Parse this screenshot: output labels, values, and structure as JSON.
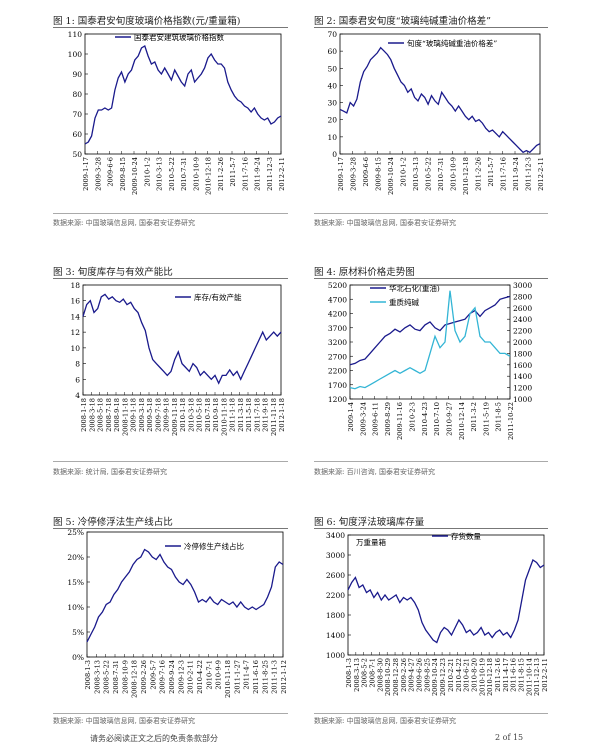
{
  "figures": [
    {
      "caption": "图 1:  国泰君安旬度玻璃价格指数(元/重量箱)",
      "source": "数据来源:  中国玻璃信息网, 国泰君安证券研究",
      "chart_data": {
        "type": "line",
        "legend": [
          "国泰君安建筑玻璃价格指数"
        ],
        "ylim": [
          50,
          110
        ],
        "yticks": [
          "50",
          "60",
          "70",
          "80",
          "90",
          "100",
          "110"
        ],
        "xticks": [
          "2009-1-17",
          "2009-3-28",
          "2009-6-6",
          "2009-8-15",
          "2009-10-24",
          "2010-1-2",
          "2010-3-13",
          "2010-5-22",
          "2010-7-31",
          "2010-10-9",
          "2010-12-18",
          "2011-2-26",
          "2011-5-7",
          "2011-7-16",
          "2011-9-24",
          "2011-12-3",
          "2012-2-11"
        ],
        "series": [
          {
            "values": [
              55,
              56,
              59,
              68,
              72,
              72,
              73,
              72,
              73,
              82,
              88,
              91,
              86,
              90,
              92,
              97,
              99,
              103,
              104,
              99,
              95,
              96,
              92,
              90,
              93,
              90,
              87,
              92,
              89,
              86,
              84,
              90,
              92,
              86,
              88,
              90,
              93,
              98,
              100,
              97,
              95,
              95,
              93,
              86,
              82,
              79,
              77,
              76,
              74,
              73,
              71,
              73,
              70,
              68,
              67,
              68,
              65,
              66,
              68,
              69
            ]
          }
        ]
      }
    },
    {
      "caption": "图 2:  国泰君安旬度“玻璃纯碱重油价格差”",
      "source": "数据来源:  中国玻璃信息网, 国泰君安证券研究",
      "chart_data": {
        "type": "line",
        "legend": [
          "旬度“玻璃纯碱重油价格差”"
        ],
        "ylim": [
          0,
          70
        ],
        "yticks": [
          "0",
          "10",
          "20",
          "30",
          "40",
          "50",
          "60",
          "70"
        ],
        "xticks": [
          "2009-1-17",
          "2009-3-28",
          "2009-6-6",
          "2009-8-15",
          "2009-10-24",
          "2010-1-2",
          "2010-3-13",
          "2010-5-22",
          "2010-7-31",
          "2010-10-9",
          "2010-12-18",
          "2011-2-26",
          "2011-5-7",
          "2011-7-16",
          "2011-9-24",
          "2011-12-3",
          "2012-2-11"
        ],
        "series": [
          {
            "values": [
              26,
              25,
              24,
              30,
              28,
              32,
              42,
              48,
              51,
              55,
              57,
              59,
              62,
              60,
              58,
              55,
              50,
              46,
              42,
              40,
              36,
              38,
              33,
              31,
              35,
              33,
              29,
              34,
              31,
              29,
              36,
              33,
              30,
              28,
              25,
              28,
              25,
              22,
              20,
              22,
              19,
              20,
              18,
              15,
              13,
              14,
              12,
              10,
              13,
              11,
              9,
              7,
              5,
              3,
              1,
              2,
              1,
              3,
              5,
              6
            ]
          }
        ]
      }
    },
    {
      "caption": "图 3:  旬度库存与有效产能比",
      "source": "数据来源:  统计局, 国泰君安证券研究",
      "chart_data": {
        "type": "line",
        "legend": [
          "库存/有效产能"
        ],
        "ylim": [
          4,
          18
        ],
        "yticks": [
          "4",
          "6",
          "8",
          "10",
          "12",
          "14",
          "16",
          "18"
        ],
        "xticks": [
          "2008-1-18",
          "2008-3-18",
          "2008-5-18",
          "2008-7-18",
          "2008-9-18",
          "2008-11-18",
          "2009-1-18",
          "2009-3-18",
          "2009-5-18",
          "2009-7-18",
          "2009-9-18",
          "2009-11-18",
          "2010-1-18",
          "2010-3-18",
          "2010-5-18",
          "2010-7-18",
          "2010-9-18",
          "2010-11-18",
          "2011-1-18",
          "2011-3-18",
          "2011-5-18",
          "2011-7-18",
          "2011-9-18",
          "2011-11-18",
          "2012-1-18"
        ],
        "series": [
          {
            "values": [
              14,
              15.5,
              16,
              14.5,
              15,
              16.5,
              16.8,
              16.2,
              16.5,
              16,
              15.8,
              16.2,
              15.5,
              15.8,
              15,
              14.5,
              13.2,
              12.2,
              10,
              8.5,
              8,
              7.5,
              7,
              6.5,
              7,
              8.5,
              9.5,
              8,
              7.5,
              7,
              8,
              7.5,
              6.5,
              7,
              6.5,
              6,
              6.5,
              5.5,
              6.5,
              6.5,
              7.2,
              6.5,
              7,
              6,
              7,
              8,
              9,
              10,
              11,
              12,
              11,
              11.5,
              12,
              11.5,
              12
            ]
          }
        ]
      }
    },
    {
      "caption": "图 4:  原材料价格走势图",
      "source": "数据来源:  百川咨询, 国泰君安证券研究",
      "chart_data": {
        "type": "line",
        "ylim_left": [
          1200,
          5200
        ],
        "yticks_left": [
          "1200",
          "1700",
          "2200",
          "2700",
          "3200",
          "3700",
          "4200",
          "4700",
          "5200"
        ],
        "ylim_right": [
          1000,
          3000
        ],
        "yticks_right": [
          "1000",
          "1200",
          "1400",
          "1600",
          "1800",
          "2000",
          "2200",
          "2400",
          "2600",
          "2800",
          "3000"
        ],
        "xticks": [
          "2009-1-4",
          "2009-3-24",
          "2009-6-11",
          "2009-8-29",
          "2009-11-16",
          "2010-2-3",
          "2010-4-23",
          "2010-7-10",
          "2010-9-27",
          "2010-12-14",
          "2011-3-2",
          "2011-5-19",
          "2011-8-5",
          "2011-10-22"
        ],
        "series": [
          {
            "name": "华北石化(重油)",
            "axis": "left",
            "values": [
              2400,
              2450,
              2550,
              2600,
              2800,
              3000,
              3200,
              3400,
              3500,
              3650,
              3550,
              3700,
              3800,
              3650,
              3600,
              3800,
              3900,
              3700,
              3600,
              3800,
              3850,
              3900,
              3950,
              4000,
              4200,
              4300,
              4100,
              4300,
              4400,
              4500,
              4700,
              4750,
              4800
            ]
          },
          {
            "name": "重质纯碱",
            "axis": "right",
            "values": [
              1200,
              1180,
              1220,
              1200,
              1250,
              1300,
              1350,
              1400,
              1450,
              1500,
              1450,
              1500,
              1550,
              1500,
              1450,
              1500,
              1800,
              2100,
              1900,
              2000,
              2900,
              2200,
              2000,
              2100,
              2500,
              2600,
              2100,
              2000,
              2000,
              1900,
              1800,
              1800,
              1750
            ]
          }
        ]
      }
    },
    {
      "caption": "图 5:  冷停修浮法生产线占比",
      "source": "数据来源:  中国玻璃信息网, 国泰君安证券研究",
      "chart_data": {
        "type": "line",
        "legend": [
          "冷停修生产线占比"
        ],
        "ylim": [
          0,
          25
        ],
        "yticks": [
          "0%",
          "5%",
          "10%",
          "15%",
          "20%",
          "25%"
        ],
        "xticks": [
          "2008-1-3",
          "2008-3-13",
          "2008-5-22",
          "2008-7-31",
          "2008-10-9",
          "2008-12-18",
          "2009-2-26",
          "2009-5-7",
          "2009-7-16",
          "2009-9-24",
          "2009-12-3",
          "2010-2-11",
          "2010-4-22",
          "2010-7-1",
          "2010-9-9",
          "2010-11-18",
          "2011-1-27",
          "2011-4-7",
          "2011-6-16",
          "2011-8-25",
          "2011-11-3",
          "2012-1-12"
        ],
        "series": [
          {
            "values": [
              3,
              4.5,
              6,
              8,
              9,
              10.5,
              11,
              12.5,
              13.5,
              15,
              16,
              17,
              18.5,
              19.5,
              20,
              21.5,
              21,
              20,
              19.5,
              20.5,
              19,
              18,
              17.5,
              16,
              15,
              14.5,
              15.5,
              14.5,
              13,
              11,
              11.5,
              11,
              12,
              11,
              10.5,
              11.5,
              11,
              10.5,
              11,
              10,
              11,
              10,
              9.5,
              10,
              9.5,
              10,
              10.5,
              12,
              14,
              18,
              19,
              18.5
            ]
          }
        ]
      }
    },
    {
      "caption": "图 6:  旬度浮法玻璃库存量",
      "source": "数据来源:  中国玻璃信息网, 国泰君安证券研究",
      "chart_data": {
        "type": "line",
        "ylabel": "万重量箱",
        "legend": [
          "存货数量"
        ],
        "ylim": [
          1000,
          3400
        ],
        "yticks": [
          "1000",
          "1400",
          "1800",
          "2200",
          "2600",
          "3000",
          "3400"
        ],
        "xticks": [
          "2008-1-3",
          "2008-3-13",
          "2008-5-2",
          "2008-7-1",
          "2008-8-30",
          "2008-10-29",
          "2008-12-28",
          "2009-2-26",
          "2009-4-27",
          "2009-6-26",
          "2009-8-25",
          "2009-10-24",
          "2009-12-23",
          "2010-2-21",
          "2010-4-22",
          "2010-6-21",
          "2010-8-20",
          "2010-10-19",
          "2010-12-18",
          "2011-2-16",
          "2011-4-17",
          "2011-6-16",
          "2011-8-15",
          "2011-10-14",
          "2011-12-13",
          "2012-2-11"
        ],
        "series": [
          {
            "values": [
              2300,
              2450,
              2550,
              2350,
              2400,
              2250,
              2300,
              2150,
              2250,
              2100,
              2200,
              2100,
              2150,
              2200,
              2050,
              2150,
              2100,
              2150,
              2050,
              1900,
              1650,
              1500,
              1400,
              1300,
              1250,
              1450,
              1550,
              1500,
              1400,
              1550,
              1700,
              1600,
              1450,
              1500,
              1400,
              1450,
              1550,
              1400,
              1450,
              1350,
              1450,
              1500,
              1400,
              1450,
              1350,
              1500,
              1700,
              2100,
              2500,
              2700,
              2900,
              2850,
              2750,
              2800
            ]
          }
        ]
      }
    }
  ],
  "footer": {
    "disclaimer": "请务必阅读正文之后的免责条款部分",
    "page": "2 of 15"
  }
}
